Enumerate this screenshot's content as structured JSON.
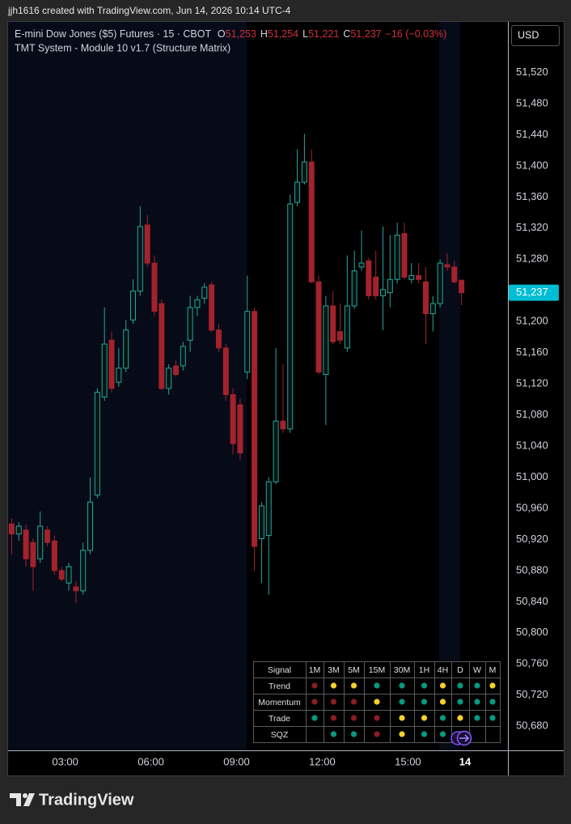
{
  "banner": "jjh1616 created with TradingView.com, Jun 14, 2026 10:14 UTC-4",
  "chart_data": {
    "type": "candlestick",
    "title": "E-mini Dow Jones ($5) Futures · 15 · CBOT",
    "ohlc_legend": [
      {
        "key": "O",
        "value": "51,253"
      },
      {
        "key": "H",
        "value": "51,254"
      },
      {
        "key": "L",
        "value": "51,221"
      },
      {
        "key": "C",
        "value": "51,237"
      }
    ],
    "change": "−16 (−0.03%)",
    "subtitle": "TMT System - Module 10 v1.7 (Structure Matrix)",
    "currency": "USD",
    "x": [
      "01:00",
      "01:15",
      "01:30",
      "01:45",
      "02:00",
      "02:15",
      "02:30",
      "02:45",
      "03:00",
      "03:15",
      "03:30",
      "03:45",
      "04:00",
      "04:15",
      "04:30",
      "04:45",
      "05:00",
      "05:15",
      "05:30",
      "05:45",
      "06:00",
      "06:15",
      "06:30",
      "06:45",
      "07:00",
      "07:15",
      "07:30",
      "07:45",
      "08:00",
      "08:15",
      "08:30",
      "08:45",
      "09:00",
      "09:15",
      "09:30",
      "09:45",
      "10:00",
      "10:15",
      "10:30",
      "10:45",
      "11:00",
      "11:15",
      "11:30",
      "11:45",
      "12:00",
      "12:15",
      "12:30",
      "12:45",
      "13:00",
      "13:15",
      "13:30",
      "13:45",
      "14:00",
      "14:15",
      "14:30",
      "14:45",
      "15:00",
      "15:15",
      "15:30",
      "15:45",
      "16:00",
      "16:15",
      "16:30",
      "16:45"
    ],
    "open": [
      50940,
      50927,
      50932,
      50916,
      50895,
      50932,
      50918,
      50880,
      50864,
      50859,
      50854,
      50906,
      50977,
      51103,
      51176,
      51122,
      51140,
      51202,
      51239,
      51324,
      51275,
      51223,
      51114,
      51143,
      51143,
      51176,
      51218,
      51230,
      51247,
      51189,
      51166,
      51106,
      51093,
      51135,
      51213,
      50921,
      50925,
      50994,
      51072,
      51062,
      51353,
      51379,
      51405,
      51251,
      51132,
      51220,
      51187,
      51166,
      51220,
      51270,
      51278,
      51257,
      51233,
      51237,
      51254,
      51313,
      51254,
      51259,
      51251,
      51210,
      51223,
      51273,
      51270,
      51253
    ],
    "high": [
      50947,
      50942,
      50939,
      50921,
      50956,
      50937,
      50925,
      50885,
      50890,
      50866,
      50916,
      51000,
      51114,
      51218,
      51187,
      51166,
      51202,
      51254,
      51348,
      51337,
      51285,
      51228,
      51145,
      51150,
      51174,
      51233,
      51233,
      51249,
      51251,
      51197,
      51171,
      51114,
      51101,
      51259,
      51218,
      50968,
      51000,
      51166,
      51145,
      51363,
      51421,
      51441,
      51421,
      51259,
      51233,
      51239,
      51223,
      51285,
      51291,
      51317,
      51282,
      51291,
      51322,
      51311,
      51327,
      51327,
      51275,
      51275,
      51270,
      51233,
      51280,
      51288,
      51278,
      51254
    ],
    "low": [
      50901,
      50918,
      50885,
      50854,
      50890,
      50911,
      50875,
      50866,
      50854,
      50838,
      50849,
      50901,
      50973,
      51098,
      51109,
      51116,
      51135,
      51197,
      51233,
      51270,
      51207,
      51112,
      51106,
      51129,
      51137,
      51161,
      51207,
      51223,
      51187,
      51161,
      51098,
      51029,
      51022,
      51126,
      50880,
      50864,
      50849,
      50991,
      51057,
      51057,
      51348,
      51376,
      51249,
      51132,
      51067,
      51171,
      51171,
      51161,
      51216,
      51265,
      51228,
      51228,
      51189,
      51218,
      51249,
      51254,
      51249,
      51249,
      51171,
      51187,
      51218,
      51265,
      51249,
      51221
    ],
    "close": [
      50927,
      50937,
      50895,
      50885,
      50937,
      50916,
      50880,
      50869,
      50885,
      50854,
      50906,
      50968,
      51109,
      51171,
      51114,
      51140,
      51189,
      51239,
      51322,
      51275,
      51213,
      51114,
      51140,
      51132,
      51168,
      51218,
      51228,
      51244,
      51189,
      51166,
      51106,
      51043,
      51031,
      51213,
      50911,
      50963,
      50994,
      51072,
      51062,
      51351,
      51379,
      51405,
      51251,
      51135,
      51220,
      51174,
      51176,
      51220,
      51265,
      51275,
      51233,
      51233,
      51241,
      51254,
      51311,
      51257,
      51259,
      51254,
      51210,
      51223,
      51275,
      51270,
      51251,
      51237
    ],
    "up_color": "#26a69a",
    "down_color": "#a3222c",
    "legend_value_color": "#d0303c",
    "xlim": [
      "01:00",
      "18:30"
    ],
    "xticks": [
      "03:00",
      "06:00",
      "09:00",
      "12:00",
      "15:00",
      {
        "value": "17:00",
        "label": "14"
      }
    ],
    "ylim": [
      50649,
      51585
    ],
    "yticks": [
      {
        "value": 50680,
        "label": "50,680"
      },
      {
        "value": 50720,
        "label": "50,720"
      },
      {
        "value": 50760,
        "label": "50,760"
      },
      {
        "value": 50800,
        "label": "50,800"
      },
      {
        "value": 50840,
        "label": "50,840"
      },
      {
        "value": 50880,
        "label": "50,880"
      },
      {
        "value": 50920,
        "label": "50,920"
      },
      {
        "value": 50960,
        "label": "50,960"
      },
      {
        "value": 51000,
        "label": "51,000"
      },
      {
        "value": 51040,
        "label": "51,040"
      },
      {
        "value": 51080,
        "label": "51,080"
      },
      {
        "value": 51120,
        "label": "51,120"
      },
      {
        "value": 51160,
        "label": "51,160"
      },
      {
        "value": 51200,
        "label": "51,200"
      },
      {
        "value": 51240,
        "label": "51,240"
      },
      {
        "value": 51280,
        "label": "51,280"
      },
      {
        "value": 51320,
        "label": "51,320"
      },
      {
        "value": 51360,
        "label": "51,360"
      },
      {
        "value": 51400,
        "label": "51,400"
      },
      {
        "value": 51440,
        "label": "51,440"
      },
      {
        "value": 51480,
        "label": "51,480"
      },
      {
        "value": 51520,
        "label": "51,520"
      }
    ],
    "grid": false,
    "last_price": {
      "value": 51237,
      "label": "51,237"
    },
    "last_price_color": "#00bcd4"
  },
  "signal_table": {
    "header": [
      "Signal",
      "1M",
      "3M",
      "5M",
      "15M",
      "30M",
      "1H",
      "4H",
      "D",
      "W",
      "M"
    ],
    "rows": [
      {
        "label": "Trend",
        "dots": [
          "#8b1d24",
          "#f5d029",
          "#f5d029",
          "#089981",
          "#089981",
          "#089981",
          "#f5d029",
          "#089981",
          "#089981",
          "#f5d029"
        ]
      },
      {
        "label": "Momentum",
        "dots": [
          "#8b1d24",
          "#8b1d24",
          "#8b1d24",
          "#f5d029",
          "#089981",
          "#089981",
          "#f5d029",
          "#089981",
          "#089981",
          "#089981"
        ]
      },
      {
        "label": "Trade",
        "dots": [
          "#089981",
          "#8b1d24",
          "#8b1d24",
          "#8b1d24",
          "#f5d029",
          "#f5d029",
          "#089981",
          "#f5d029",
          "#089981",
          "#089981"
        ]
      },
      {
        "label": "SQZ",
        "dots": [
          null,
          "#089981",
          "#089981",
          "#8b1d24",
          "#f5d029",
          "#089981",
          "#089981",
          null,
          null,
          null
        ]
      }
    ]
  },
  "footer": {
    "brand": "TradingView"
  }
}
